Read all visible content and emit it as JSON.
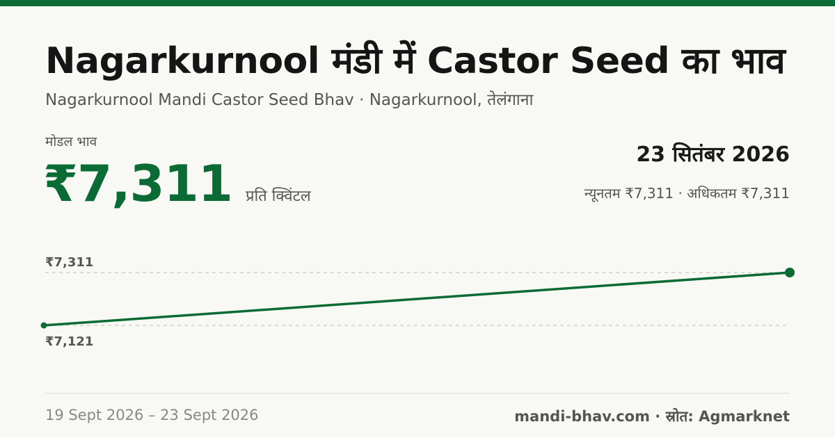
{
  "header": {
    "title": "Nagarkurnool मंडी में Castor Seed का भाव",
    "subtitle": "Nagarkurnool Mandi Castor Seed Bhav · Nagarkurnool, तेलंगाना"
  },
  "summary": {
    "model_label": "मोडल भाव",
    "model_price": "₹7,311",
    "unit": "प्रति क्विंटल",
    "date": "23 सितंबर 2026",
    "range": "न्यूनतम ₹7,311 · अधिकतम ₹7,311"
  },
  "chart_data": {
    "type": "line",
    "x": [
      "19 Sept 2026",
      "23 Sept 2026"
    ],
    "series": [
      {
        "values": [
          7121,
          7311
        ]
      }
    ],
    "ylim": [
      7121,
      7311
    ],
    "y_tick_labels": [
      "₹7,311",
      "₹7,121"
    ],
    "grid": "dashed",
    "line_color": "#0b6b35"
  },
  "footer": {
    "date_range": "19 Sept 2026 – 23 Sept 2026",
    "source": "mandi-bhav.com · स्रोत: Agmarknet"
  },
  "colors": {
    "accent": "#0b6b35",
    "background": "#f8f9f5"
  }
}
